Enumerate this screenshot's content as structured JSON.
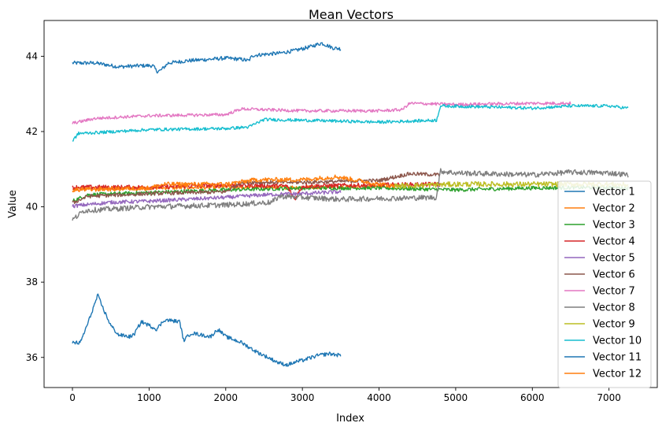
{
  "chart_data": {
    "type": "line",
    "title": "Mean Vectors",
    "xlabel": "Index",
    "ylabel": "Value",
    "xlim": [
      -370,
      7630
    ],
    "ylim": [
      35.2,
      44.95
    ],
    "xticks": [
      0,
      1000,
      2000,
      3000,
      4000,
      5000,
      6000,
      7000
    ],
    "yticks": [
      36,
      38,
      40,
      42,
      44
    ],
    "grid": false,
    "legend_position": "right",
    "series": [
      {
        "name": "Vector 1",
        "color": "#1f77b4",
        "noise": 0.05,
        "x": [
          0,
          300,
          600,
          900,
          1050,
          1100,
          1150,
          1250,
          1500,
          1800,
          2000,
          2200,
          2300,
          2350,
          2500,
          2700,
          2900,
          3100,
          3250,
          3400,
          3500
        ],
        "y": [
          43.82,
          43.82,
          43.72,
          43.75,
          43.75,
          43.6,
          43.62,
          43.82,
          43.88,
          43.92,
          43.95,
          43.92,
          43.88,
          44.02,
          44.05,
          44.08,
          44.15,
          44.25,
          44.35,
          44.22,
          44.2
        ]
      },
      {
        "name": "Vector 2",
        "color": "#ff7f0e",
        "noise": 0.05,
        "x": [
          0,
          1000,
          2000,
          3000,
          4000,
          4200
        ],
        "y": [
          40.48,
          40.5,
          40.52,
          40.52,
          40.55,
          40.55
        ]
      },
      {
        "name": "Vector 3",
        "color": "#2ca02c",
        "noise": 0.05,
        "x": [
          0,
          200,
          1000,
          2000,
          3000,
          4000,
          5000,
          6000,
          7000,
          7250
        ],
        "y": [
          40.15,
          40.32,
          40.38,
          40.45,
          40.5,
          40.5,
          40.45,
          40.5,
          40.52,
          40.5
        ]
      },
      {
        "name": "Vector 4",
        "color": "#d62728",
        "noise": 0.06,
        "x": [
          0,
          1000,
          2000,
          2800,
          2900,
          3000,
          4000,
          4800
        ],
        "y": [
          40.52,
          40.52,
          40.58,
          40.55,
          40.2,
          40.55,
          40.58,
          40.6
        ]
      },
      {
        "name": "Vector 5",
        "color": "#9467bd",
        "noise": 0.05,
        "x": [
          0,
          500,
          1000,
          1500,
          2000,
          2500,
          3000,
          3500
        ],
        "y": [
          40.02,
          40.12,
          40.15,
          40.2,
          40.25,
          40.32,
          40.35,
          40.4
        ]
      },
      {
        "name": "Vector 6",
        "color": "#8c564b",
        "noise": 0.05,
        "x": [
          0,
          200,
          1000,
          2000,
          2200,
          3000,
          4000,
          4400,
          4800
        ],
        "y": [
          40.1,
          40.28,
          40.35,
          40.4,
          40.65,
          40.65,
          40.7,
          40.88,
          40.85
        ]
      },
      {
        "name": "Vector 7",
        "color": "#e377c2",
        "noise": 0.04,
        "x": [
          0,
          300,
          1000,
          2000,
          2200,
          3000,
          4000,
          4300,
          4400,
          5000,
          6000,
          6500
        ],
        "y": [
          42.22,
          42.35,
          42.42,
          42.45,
          42.6,
          42.55,
          42.55,
          42.58,
          42.75,
          42.72,
          42.75,
          42.75
        ]
      },
      {
        "name": "Vector 8",
        "color": "#7f7f7f",
        "noise": 0.07,
        "x": [
          0,
          150,
          1000,
          2000,
          2600,
          2700,
          3500,
          4000,
          4750,
          4800,
          5000,
          6000,
          6500,
          7000,
          7250
        ],
        "y": [
          39.65,
          39.9,
          40.0,
          40.05,
          40.12,
          40.28,
          40.2,
          40.22,
          40.25,
          40.95,
          40.9,
          40.85,
          40.92,
          40.9,
          40.85
        ]
      },
      {
        "name": "Vector 9",
        "color": "#bcbd22",
        "noise": 0.07,
        "x": [
          4200,
          5000,
          6000,
          7000,
          7250
        ],
        "y": [
          40.55,
          40.6,
          40.6,
          40.6,
          40.58
        ]
      },
      {
        "name": "Vector 10",
        "color": "#17becf",
        "noise": 0.04,
        "x": [
          0,
          80,
          300,
          1000,
          2000,
          2300,
          2500,
          3000,
          4000,
          4750,
          4800,
          5500,
          6000,
          6500,
          7000,
          7250
        ],
        "y": [
          41.75,
          41.95,
          41.97,
          42.05,
          42.08,
          42.12,
          42.32,
          42.3,
          42.25,
          42.3,
          42.68,
          42.65,
          42.62,
          42.68,
          42.68,
          42.62
        ]
      },
      {
        "name": "Vector 11",
        "color": "#1f77b4",
        "noise": 0.05,
        "x": [
          0,
          100,
          200,
          330,
          400,
          500,
          600,
          750,
          800,
          900,
          1000,
          1100,
          1200,
          1400,
          1450,
          1550,
          1800,
          1900,
          2000,
          2200,
          2400,
          2600,
          2700,
          2800,
          2950,
          3000,
          3200,
          3350,
          3500
        ],
        "y": [
          36.4,
          36.38,
          36.9,
          37.65,
          37.3,
          36.85,
          36.6,
          36.55,
          36.6,
          36.95,
          36.85,
          36.75,
          37.0,
          36.95,
          36.45,
          36.65,
          36.55,
          36.75,
          36.55,
          36.4,
          36.15,
          35.95,
          35.85,
          35.8,
          35.9,
          35.92,
          36.05,
          36.1,
          36.05
        ]
      },
      {
        "name": "Vector 12",
        "color": "#ff7f0e",
        "noise": 0.06,
        "x": [
          0,
          1000,
          1200,
          2000,
          2400,
          3000,
          3450,
          4000,
          4200
        ],
        "y": [
          40.45,
          40.5,
          40.6,
          40.6,
          40.72,
          40.72,
          40.8,
          40.6,
          40.55
        ]
      }
    ]
  }
}
